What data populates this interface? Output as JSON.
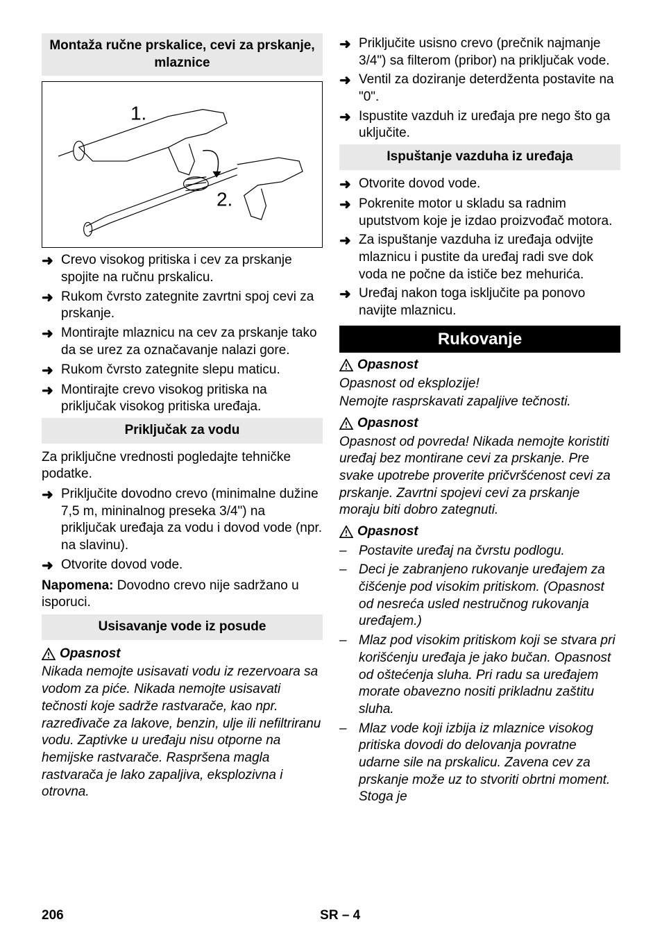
{
  "left": {
    "heading1": "Montaža ručne prskalice, cevi za prskanje, mlaznice",
    "figure": {
      "label1": "1.",
      "label2": "2."
    },
    "items1": [
      "Crevo visokog pritiska i cev za prskanje spojite na ručnu prskalicu.",
      "Rukom čvrsto zategnite zavrtni spoj cevi za prskanje.",
      "Montirajte mlaznicu na cev za prskanje tako da se urez za označavanje nalazi gore.",
      "Rukom čvrsto zategnite slepu maticu.",
      "Montirajte crevo visokog pritiska na priključak visokog pritiska uređaja."
    ],
    "heading2": "Priključak za vodu",
    "para1": "Za priključne vrednosti pogledajte tehničke podatke.",
    "items2": [
      "Priključite dovodno crevo (minimalne dužine 7,5 m, mininalnog preseka 3/4\") na priključak uređaja za vodu i dovod vode (npr. na slavinu).",
      "Otvorite dovod vode."
    ],
    "note_label": "Napomena:",
    "note_text": " Dovodno crevo nije sadržano u isporuci.",
    "heading3": "Usisavanje vode iz posude",
    "danger": "Opasnost",
    "danger_text": "Nikada nemojte usisavati vodu iz rezervoara sa vodom za piće. Nikada nemojte usisavati tečnosti koje sadrže rastvarače, kao npr. razređivače za lakove, benzin, ulje ili nefiltriranu vodu. Zaptivke u uređaju nisu otporne na hemijske rastvarače. Raspršena magla rastvarača je lako zapaljiva, eksplozivna i otrovna."
  },
  "right": {
    "items1": [
      "Priključite usisno crevo (prečnik najmanje 3/4\") sa filterom (pribor) na priključak vode.",
      "Ventil za doziranje deterdženta postavite na \"0\".",
      "Ispustite vazduh iz uređaja pre nego što ga uključite."
    ],
    "heading1": "Ispuštanje vazduha iz uređaja",
    "items2": [
      "Otvorite dovod vode.",
      "Pokrenite motor u skladu sa radnim uputstvom koje je izdao proizvođač motora.",
      "Za ispuštanje vazduha iz uređaja odvijte mlaznicu i pustite da uređaj radi sve dok voda ne počne da ističe bez mehurića.",
      "Uređaj nakon toga isključite pa ponovo navijte mlaznicu."
    ],
    "heading_black": "Rukovanje",
    "danger1": "Opasnost",
    "danger1_text1": "Opasnost od eksplozije!",
    "danger1_text2": "Nemojte rasprskavati zapaljive tečnosti.",
    "danger2": "Opasnost",
    "danger2_text": "Opasnost od povreda! Nikada nemojte koristiti uređaj bez montirane cevi za prskanje. Pre svake upotrebe proverite pričvršćenost cevi za prskanje. Zavrtni spojevi cevi za prskanje moraju biti dobro zategnuti.",
    "danger3": "Opasnost",
    "dash_items": [
      "Postavite uređaj na čvrstu podlogu.",
      "Deci je zabranjeno rukovanje uređajem za čišćenje pod visokim pritiskom. (Opasnost od nesreća usled nestručnog rukovanja uređajem.)",
      "Mlaz pod visokim pritiskom koji se stvara pri korišćenju uređaja je jako bučan. Opasnost od oštećenja sluha. Pri radu sa uređajem morate obavezno nositi prikladnu zaštitu sluha.",
      "Mlaz vode koji izbija iz mlaznice visokog pritiska dovodi do delovanja povratne udarne sile na prskalicu. Zavena cev za prskanje može uz to stvoriti obrtni moment. Stoga je"
    ]
  },
  "footer": {
    "page": "206",
    "code": "SR – 4"
  }
}
